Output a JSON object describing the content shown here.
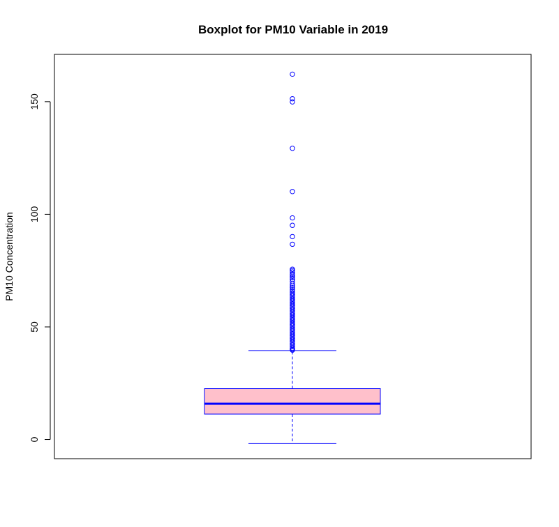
{
  "chart_data": {
    "type": "boxplot",
    "title": "Boxplot for PM10 Variable in 2019",
    "xlabel": "",
    "ylabel": "PM10 Concentration",
    "ylim": [
      -8.5,
      171
    ],
    "yticks": [
      0,
      50,
      100,
      150
    ],
    "ytick_labels": [
      "0",
      "50",
      "100",
      "150"
    ],
    "grid": false,
    "legend": "none",
    "box": {
      "min": -1.8,
      "q1": 11.3,
      "median": 15.9,
      "q3": 22.6,
      "whisker_high": 39.5
    },
    "outliers": [
      162.2,
      151.3,
      149.9,
      129.3,
      110.1,
      98.4,
      95.1,
      90.1,
      86.7,
      75.6,
      75.0,
      74.4,
      73.4,
      72.5,
      71.8,
      71.1,
      70.1,
      69.0,
      68.2,
      67.4,
      66.5,
      65.8,
      65.1,
      64.4,
      63.7,
      63.0,
      62.3,
      61.6,
      60.9,
      60.2,
      59.5,
      58.8,
      58.1,
      57.4,
      56.7,
      56.0,
      55.3,
      54.6,
      53.9,
      53.2,
      52.5,
      51.8,
      51.1,
      50.4,
      49.7,
      49.0,
      48.3,
      47.6,
      46.9,
      46.2,
      45.5,
      44.8,
      44.1,
      43.4,
      42.7,
      42.0,
      41.3,
      40.6,
      40.0,
      39.7
    ],
    "colors": {
      "box_fill": "#ffc0cb",
      "box_border": "#0000ff",
      "median": "#0000ff",
      "whisker": "#0000ff",
      "outlier": "#0000ff",
      "frame": "#000000"
    }
  }
}
